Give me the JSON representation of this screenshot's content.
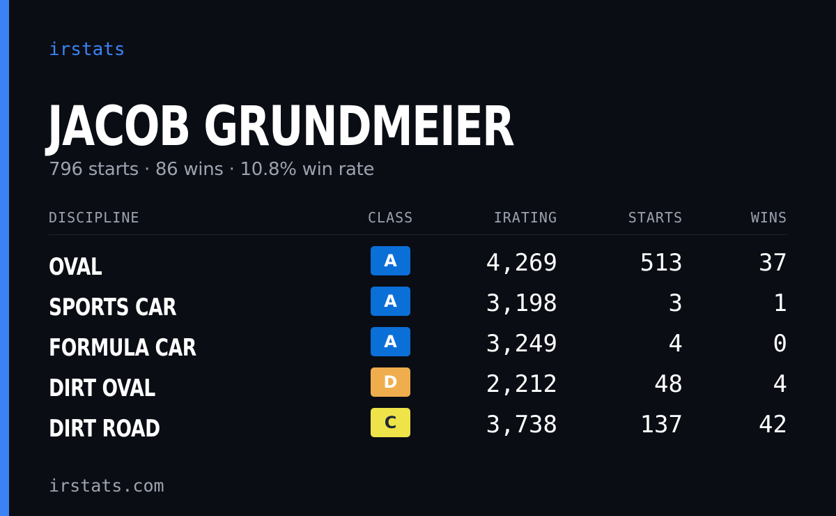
{
  "brand": "irstats",
  "player": {
    "name": "JACOB GRUNDMEIER",
    "summary": "796 starts · 86 wins · 10.8% win rate"
  },
  "table": {
    "headers": {
      "discipline": "DISCIPLINE",
      "class": "CLASS",
      "irating": "IRATING",
      "starts": "STARTS",
      "wins": "WINS"
    },
    "rows": [
      {
        "discipline": "OVAL",
        "class": "A",
        "irating": "4,269",
        "starts": "513",
        "wins": "37"
      },
      {
        "discipline": "SPORTS CAR",
        "class": "A",
        "irating": "3,198",
        "starts": "3",
        "wins": "1"
      },
      {
        "discipline": "FORMULA CAR",
        "class": "A",
        "irating": "3,249",
        "starts": "4",
        "wins": "0"
      },
      {
        "discipline": "DIRT OVAL",
        "class": "D",
        "irating": "2,212",
        "starts": "48",
        "wins": "4"
      },
      {
        "discipline": "DIRT ROAD",
        "class": "C",
        "irating": "3,738",
        "starts": "137",
        "wins": "42"
      }
    ]
  },
  "class_colors": {
    "A": "#0b6fd8",
    "D": "#f0ad4e",
    "C": "#efe34a"
  },
  "accent_color": "#3b82f6",
  "footer": {
    "url": "irstats.com"
  }
}
